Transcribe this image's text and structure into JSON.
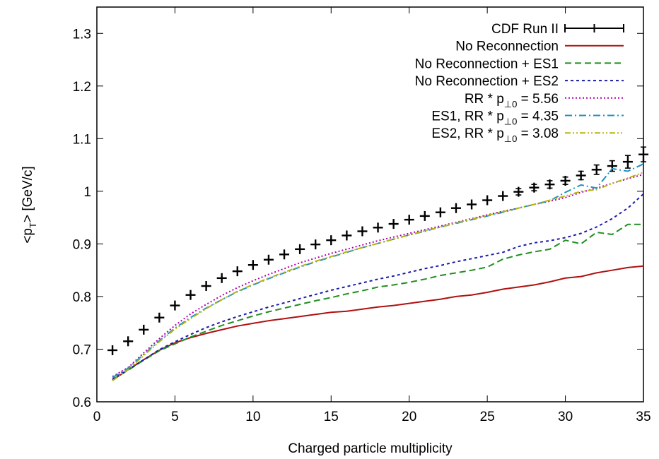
{
  "chart_data": {
    "type": "line",
    "xlabel": "Charged particle multiplicity",
    "ylabel": "<p_T> [GeV/c]",
    "xlim": [
      0,
      35
    ],
    "ylim": [
      0.6,
      1.35
    ],
    "xticks": [
      0,
      5,
      10,
      15,
      20,
      25,
      30,
      35
    ],
    "yticks": [
      0.6,
      0.7,
      0.8,
      0.9,
      1,
      1.1,
      1.2,
      1.3
    ],
    "ytick_labels": [
      "0.6",
      "0.7",
      "0.8",
      "0.9",
      "1",
      "1.1",
      "1.2",
      "1.3"
    ],
    "grid": false,
    "legend_position": "top-right",
    "x": [
      1,
      2,
      3,
      4,
      5,
      6,
      7,
      8,
      9,
      10,
      11,
      12,
      13,
      14,
      15,
      16,
      17,
      18,
      19,
      20,
      21,
      22,
      23,
      24,
      25,
      26,
      27,
      28,
      29,
      30,
      31,
      32,
      33,
      34,
      35
    ],
    "series": [
      {
        "name": "CDF Run II",
        "style": "errorbar",
        "color": "#000000",
        "values": [
          0.698,
          0.715,
          0.737,
          0.76,
          0.783,
          0.803,
          0.82,
          0.835,
          0.848,
          0.86,
          0.87,
          0.88,
          0.89,
          0.899,
          0.907,
          0.916,
          0.924,
          0.931,
          0.938,
          0.946,
          0.953,
          0.96,
          0.968,
          0.975,
          0.983,
          0.991,
          0.999,
          1.007,
          1.013,
          1.02,
          1.03,
          1.041,
          1.048,
          1.056,
          1.07
        ],
        "errors": [
          0.003,
          0.003,
          0.003,
          0.003,
          0.003,
          0.003,
          0.003,
          0.003,
          0.003,
          0.003,
          0.003,
          0.003,
          0.003,
          0.003,
          0.003,
          0.003,
          0.003,
          0.004,
          0.004,
          0.004,
          0.004,
          0.004,
          0.005,
          0.005,
          0.005,
          0.005,
          0.006,
          0.006,
          0.007,
          0.007,
          0.008,
          0.009,
          0.01,
          0.012,
          0.014
        ]
      },
      {
        "name": "No Reconnection",
        "style": "solid",
        "color": "#b01010",
        "values": [
          0.641,
          0.661,
          0.68,
          0.698,
          0.712,
          0.722,
          0.73,
          0.737,
          0.744,
          0.749,
          0.754,
          0.758,
          0.762,
          0.766,
          0.77,
          0.772,
          0.776,
          0.78,
          0.783,
          0.787,
          0.791,
          0.795,
          0.8,
          0.803,
          0.808,
          0.814,
          0.818,
          0.822,
          0.828,
          0.835,
          0.838,
          0.845,
          0.85,
          0.855,
          0.858
        ]
      },
      {
        "name": "No Reconnection + ES1",
        "style": "dashed",
        "color": "#1f8f1f",
        "values": [
          0.642,
          0.66,
          0.679,
          0.697,
          0.71,
          0.723,
          0.734,
          0.745,
          0.754,
          0.763,
          0.771,
          0.778,
          0.785,
          0.792,
          0.798,
          0.805,
          0.811,
          0.818,
          0.822,
          0.827,
          0.833,
          0.84,
          0.845,
          0.85,
          0.856,
          0.871,
          0.879,
          0.885,
          0.89,
          0.907,
          0.9,
          0.922,
          0.918,
          0.937,
          0.937
        ]
      },
      {
        "name": "No Reconnection + ES2",
        "style": "dotted-dense",
        "color": "#1a1aa8",
        "values": [
          0.643,
          0.661,
          0.68,
          0.699,
          0.714,
          0.728,
          0.741,
          0.752,
          0.762,
          0.771,
          0.78,
          0.788,
          0.796,
          0.804,
          0.812,
          0.819,
          0.826,
          0.833,
          0.839,
          0.846,
          0.853,
          0.859,
          0.866,
          0.872,
          0.878,
          0.884,
          0.895,
          0.902,
          0.906,
          0.912,
          0.92,
          0.932,
          0.948,
          0.968,
          0.995
        ]
      },
      {
        "name": "RR * p_⊥0 = 5.56",
        "style": "dotted",
        "color": "#b000b0",
        "values": [
          0.648,
          0.665,
          0.693,
          0.72,
          0.745,
          0.767,
          0.785,
          0.802,
          0.817,
          0.83,
          0.842,
          0.853,
          0.864,
          0.873,
          0.882,
          0.89,
          0.898,
          0.906,
          0.913,
          0.92,
          0.927,
          0.934,
          0.941,
          0.948,
          0.955,
          0.962,
          0.968,
          0.975,
          0.981,
          0.988,
          0.998,
          1.006,
          1.015,
          1.024,
          1.032
        ]
      },
      {
        "name": "ES1, RR * p_⊥0 = 4.35",
        "style": "dashdot",
        "color": "#2090c0",
        "values": [
          0.646,
          0.664,
          0.69,
          0.716,
          0.74,
          0.76,
          0.778,
          0.794,
          0.809,
          0.822,
          0.834,
          0.845,
          0.856,
          0.866,
          0.875,
          0.884,
          0.893,
          0.901,
          0.909,
          0.917,
          0.924,
          0.932,
          0.939,
          0.946,
          0.953,
          0.96,
          0.968,
          0.975,
          0.982,
          0.998,
          1.012,
          1.006,
          1.043,
          1.038,
          1.052
        ]
      },
      {
        "name": "ES2, RR * p_⊥0 = 3.08",
        "style": "dashdotdot",
        "color": "#b5b514",
        "values": [
          0.64,
          0.661,
          0.688,
          0.714,
          0.738,
          0.758,
          0.777,
          0.794,
          0.81,
          0.823,
          0.835,
          0.846,
          0.857,
          0.867,
          0.876,
          0.885,
          0.893,
          0.901,
          0.909,
          0.917,
          0.925,
          0.932,
          0.94,
          0.947,
          0.954,
          0.961,
          0.968,
          0.975,
          0.983,
          0.991,
          1.0,
          1.003,
          1.015,
          1.025,
          1.036
        ]
      }
    ]
  }
}
